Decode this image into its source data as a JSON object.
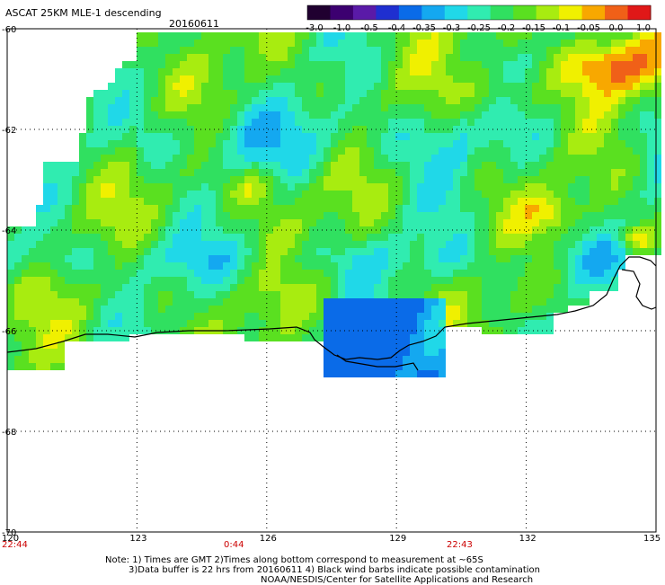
{
  "title": "ASCAT 25KM MLE-1 descending",
  "date": "20160611",
  "colorbar": {
    "tick_labels": [
      "-3.0",
      "-1.0",
      "-0.5",
      "-0.4",
      "-0.35",
      "-0.3",
      "-0.25",
      "-0.2",
      "-0.15",
      "-0.1",
      "-0.05",
      "0.0",
      "1.0"
    ],
    "colors": [
      "#200030",
      "#3c0070",
      "#5a1aa8",
      "#1f2fd0",
      "#0a6be8",
      "#14a8f0",
      "#20d8e8",
      "#30ecb0",
      "#30e060",
      "#5ae020",
      "#a8ec10",
      "#f0f000",
      "#f8a800",
      "#f06018",
      "#e01818"
    ]
  },
  "lat_labels": [
    "-60",
    "-62",
    "-64",
    "-66",
    "-68",
    "-70"
  ],
  "lon_labels": [
    "120",
    "123",
    "126",
    "129",
    "132",
    "135"
  ],
  "time_labels": [
    "22:44",
    "0:44",
    "22:43"
  ],
  "notes": [
    "Note: 1) Times are GMT 2)Times along bottom correspond to measurement at ~65S",
    "3)Data buffer is 22 hrs from 20160611 4) Black wind barbs indicate possible contamination",
    "NOAA/NESDIS/Center for Satellite Applications and Research"
  ]
}
